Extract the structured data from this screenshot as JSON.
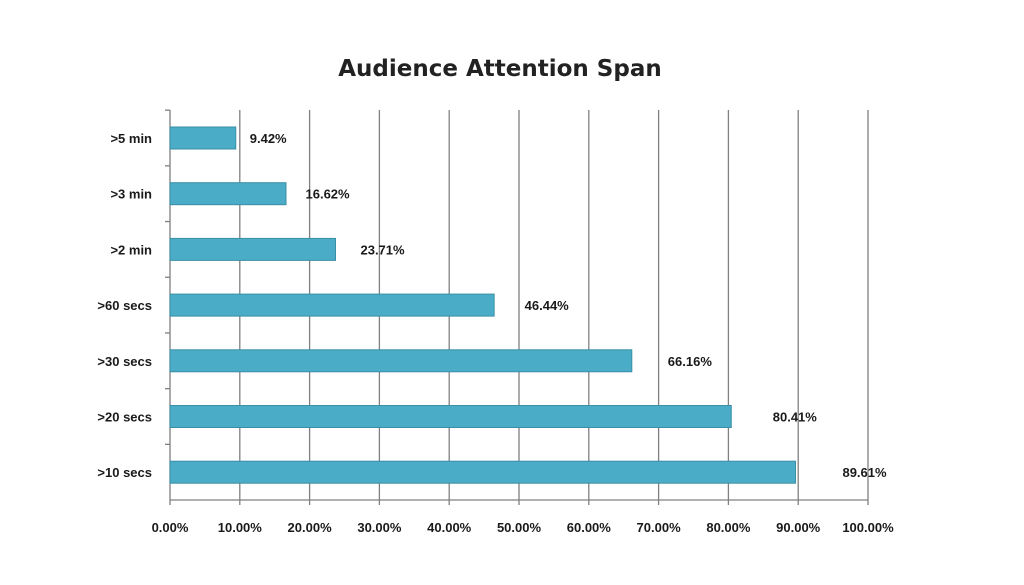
{
  "chart_data": {
    "type": "bar",
    "orientation": "horizontal",
    "title": "Audience Attention Span",
    "xlabel": "",
    "ylabel": "",
    "categories": [
      ">5 min",
      ">3 min",
      ">2 min",
      ">60 secs",
      ">30 secs",
      ">20 secs",
      ">10 secs"
    ],
    "values": [
      9.42,
      16.62,
      23.71,
      46.44,
      66.16,
      80.41,
      89.61
    ],
    "data_labels": [
      "9.42%",
      "16.62%",
      "23.71%",
      "46.44%",
      "66.16%",
      "80.41%",
      "89.61%"
    ],
    "xlim": [
      0,
      100
    ],
    "x_ticks": [
      0,
      10,
      20,
      30,
      40,
      50,
      60,
      70,
      80,
      90,
      100
    ],
    "x_tick_labels": [
      "0.00%",
      "10.00%",
      "20.00%",
      "30.00%",
      "40.00%",
      "50.00%",
      "60.00%",
      "70.00%",
      "80.00%",
      "90.00%",
      "100.00%"
    ],
    "grid": "vertical",
    "legend": "none",
    "colors": {
      "bar_fill": "#4aacc6",
      "bar_stroke": "#3a8fa6",
      "grid": "#808080",
      "axis": "#808080"
    }
  }
}
